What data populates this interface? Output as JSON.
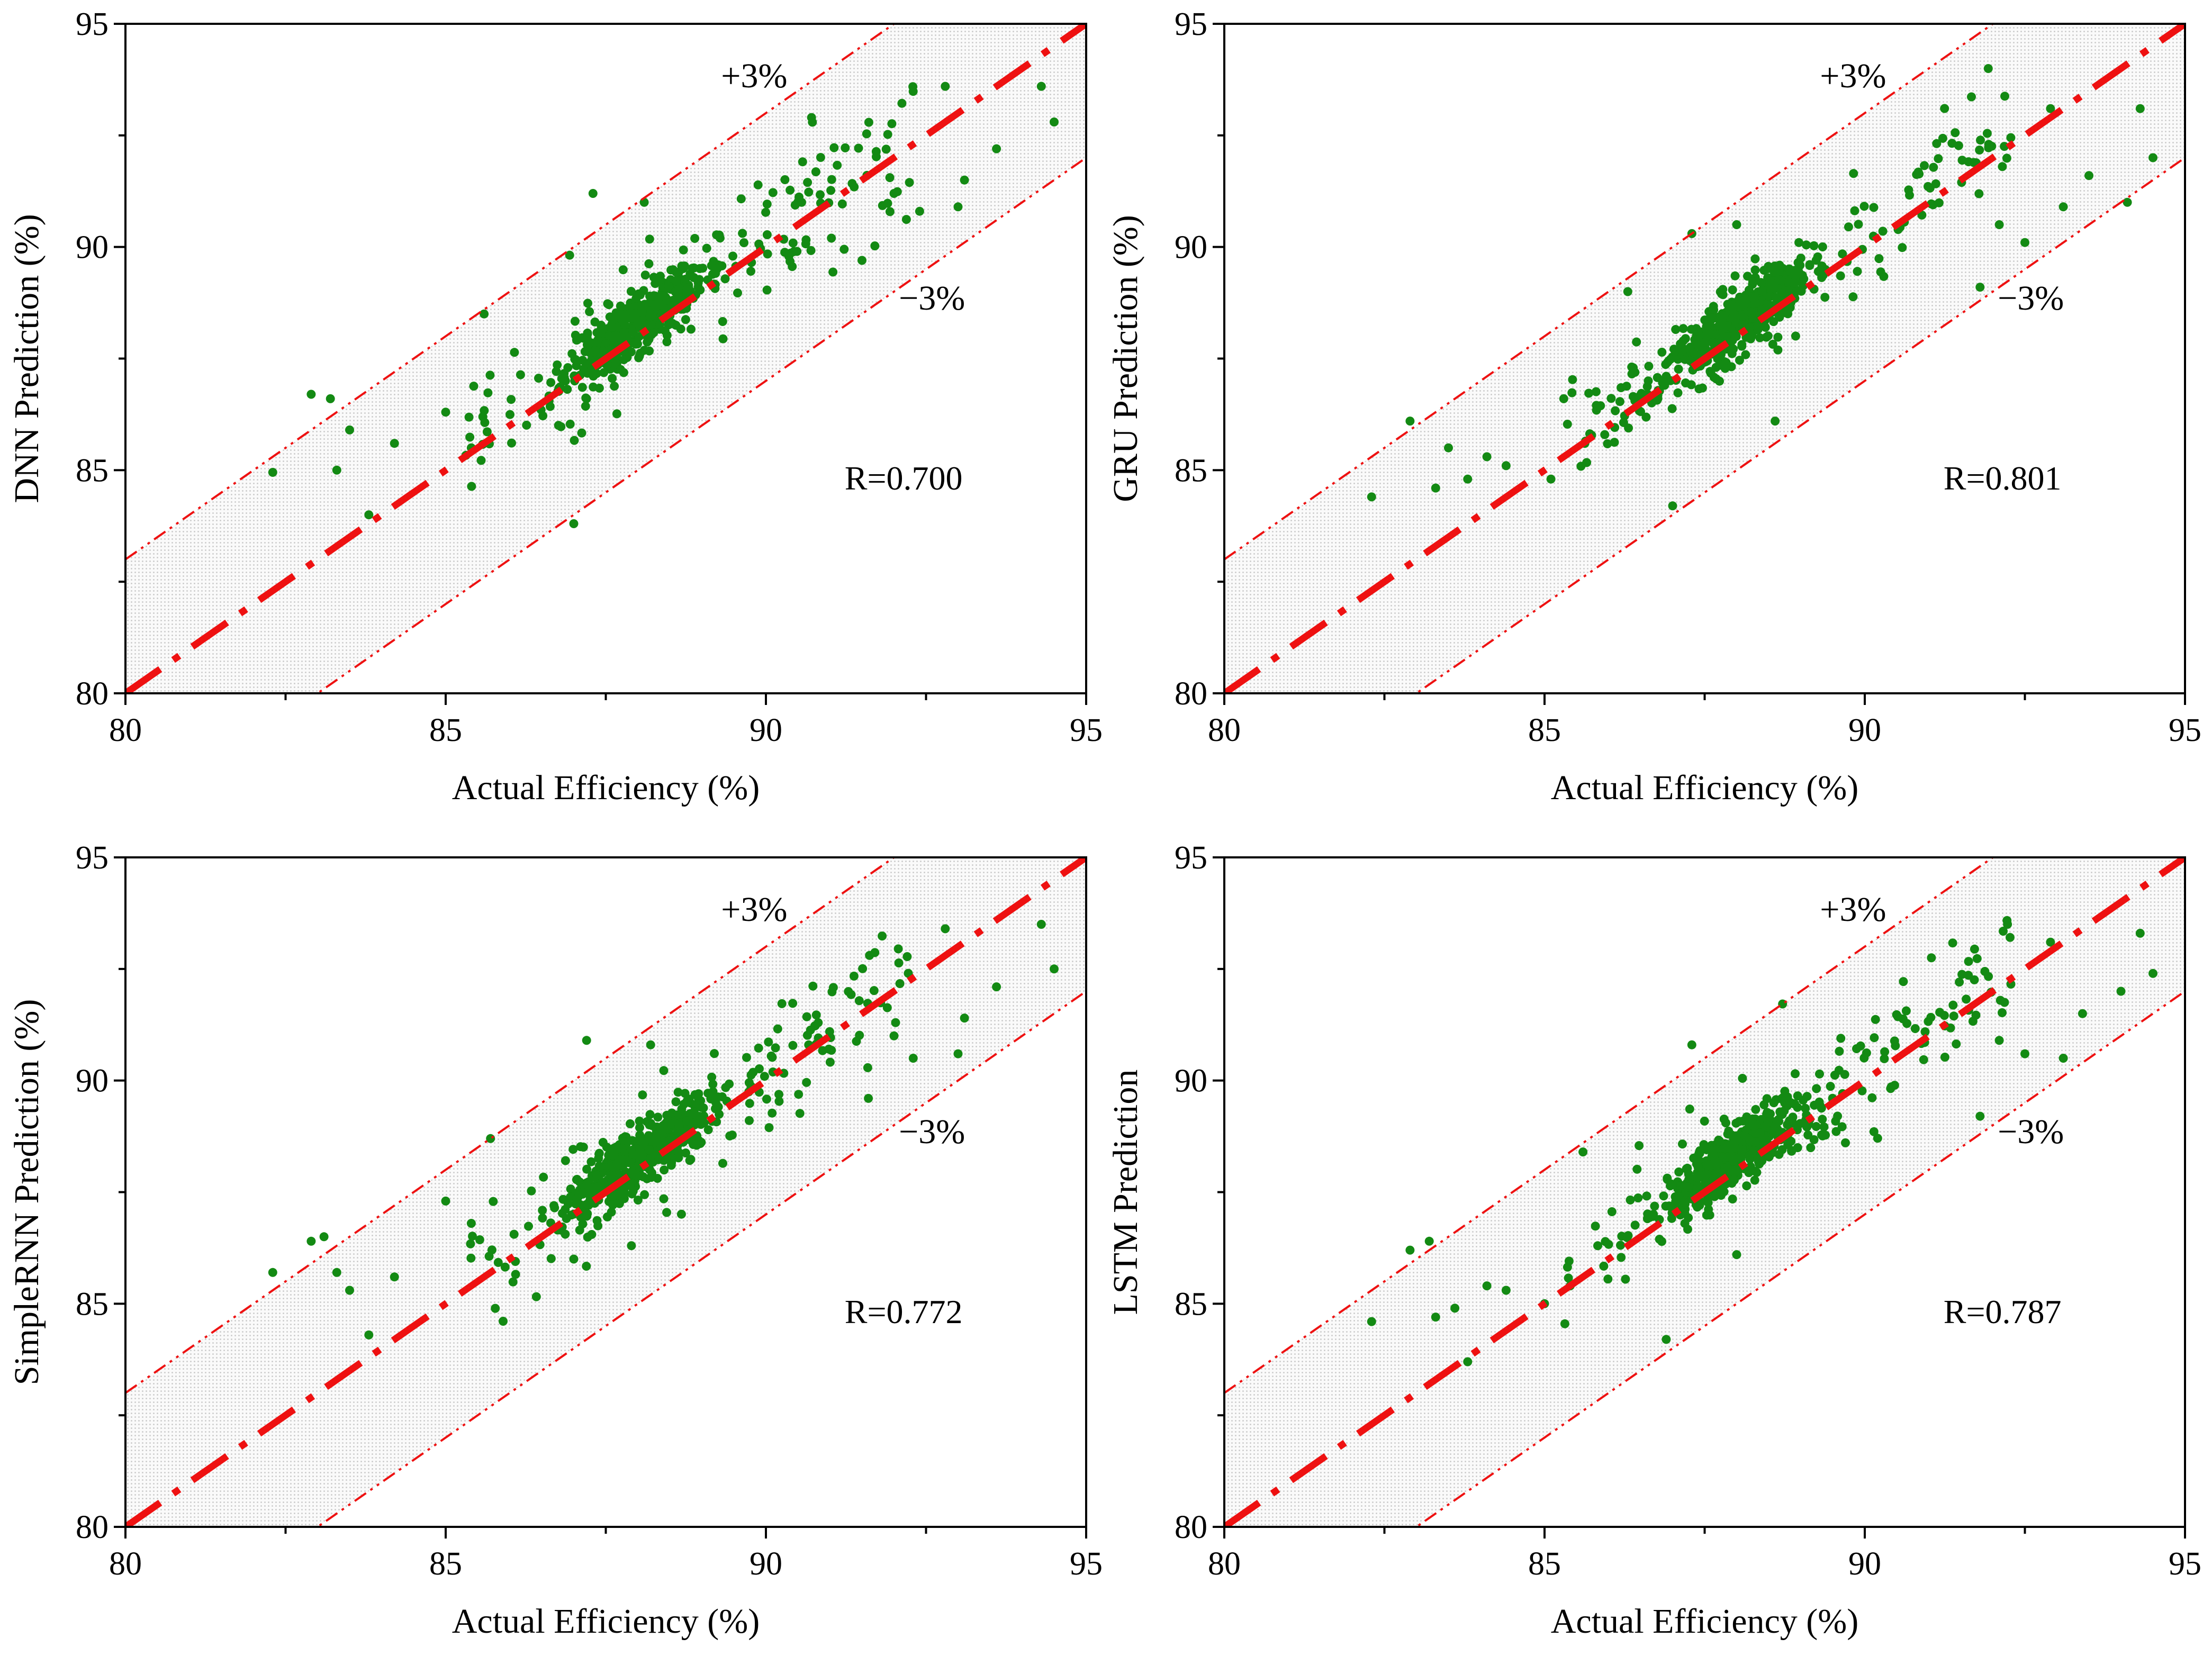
{
  "colors": {
    "points": "#138a13",
    "reference_line": "#ee1111",
    "band_fill": "#d9d9d9",
    "axes": "#000000"
  },
  "chart_data": [
    {
      "type": "scatter",
      "id": "dnn",
      "xlabel": "Actual Efficiency (%)",
      "ylabel": "DNN Prediction (%)",
      "xlim": [
        80,
        95
      ],
      "ylim": [
        80,
        95
      ],
      "xticks": [
        "80",
        "85",
        "90",
        "95"
      ],
      "yticks": [
        "80",
        "85",
        "90",
        "95"
      ],
      "band_plus_label": "+3%",
      "band_minus_label": "−3%",
      "r_label": "R=0.700",
      "points_seed": 11,
      "points_spread": 0.85,
      "outliers": [
        [
          82.3,
          84.95
        ],
        [
          82.9,
          86.7
        ],
        [
          83.2,
          86.6
        ],
        [
          83.3,
          85.0
        ],
        [
          83.5,
          85.9
        ],
        [
          83.8,
          84.0
        ],
        [
          84.2,
          85.6
        ],
        [
          85.0,
          86.3
        ],
        [
          85.4,
          85.5
        ],
        [
          85.6,
          88.5
        ],
        [
          87.0,
          83.8
        ],
        [
          87.2,
          86.6
        ],
        [
          87.3,
          91.2
        ],
        [
          88.1,
          91.0
        ],
        [
          91.5,
          89.7
        ],
        [
          92.0,
          91.2
        ],
        [
          92.4,
          90.8
        ],
        [
          92.8,
          93.6
        ],
        [
          93.0,
          90.9
        ],
        [
          93.1,
          91.5
        ],
        [
          93.6,
          92.2
        ],
        [
          94.3,
          93.6
        ],
        [
          94.5,
          92.8
        ]
      ]
    },
    {
      "type": "scatter",
      "id": "gru",
      "xlabel": "Actual Efficiency (%)",
      "ylabel": "GRU Prediction (%)",
      "xlim": [
        80,
        95
      ],
      "ylim": [
        80,
        95
      ],
      "xticks": [
        "80",
        "85",
        "90",
        "95"
      ],
      "yticks": [
        "80",
        "85",
        "90",
        "95"
      ],
      "band_plus_label": "+3%",
      "band_minus_label": "−3%",
      "r_label": "R=0.801",
      "points_seed": 23,
      "points_spread": 0.7,
      "outliers": [
        [
          82.3,
          84.4
        ],
        [
          82.9,
          86.1
        ],
        [
          83.3,
          84.6
        ],
        [
          83.5,
          85.5
        ],
        [
          83.8,
          84.8
        ],
        [
          84.1,
          85.3
        ],
        [
          84.4,
          85.1
        ],
        [
          85.1,
          84.8
        ],
        [
          85.3,
          86.6
        ],
        [
          86.3,
          89.0
        ],
        [
          87.0,
          84.2
        ],
        [
          87.3,
          90.3
        ],
        [
          88.0,
          90.5
        ],
        [
          88.6,
          86.1
        ],
        [
          91.8,
          89.1
        ],
        [
          92.1,
          90.5
        ],
        [
          92.5,
          90.1
        ],
        [
          92.9,
          93.1
        ],
        [
          93.1,
          90.9
        ],
        [
          93.5,
          91.6
        ],
        [
          94.1,
          91.0
        ],
        [
          94.3,
          93.1
        ],
        [
          94.5,
          92.0
        ]
      ]
    },
    {
      "type": "scatter",
      "id": "simplernn",
      "xlabel": "Actual Efficiency (%)",
      "ylabel": "SimpleRNN Prediction (%)",
      "xlim": [
        80,
        95
      ],
      "ylim": [
        80,
        95
      ],
      "xticks": [
        "80",
        "85",
        "90",
        "95"
      ],
      "yticks": [
        "80",
        "85",
        "90",
        "95"
      ],
      "band_plus_label": "+3%",
      "band_minus_label": "−3%",
      "r_label": "R=0.772",
      "points_seed": 37,
      "points_spread": 0.75,
      "outliers": [
        [
          82.3,
          85.7
        ],
        [
          82.9,
          86.4
        ],
        [
          83.1,
          86.5
        ],
        [
          83.3,
          85.7
        ],
        [
          83.5,
          85.3
        ],
        [
          83.8,
          84.3
        ],
        [
          84.2,
          85.6
        ],
        [
          85.0,
          87.3
        ],
        [
          85.4,
          86.8
        ],
        [
          85.7,
          88.7
        ],
        [
          87.0,
          86.0
        ],
        [
          87.2,
          90.9
        ],
        [
          87.9,
          86.3
        ],
        [
          88.2,
          90.8
        ],
        [
          91.6,
          89.6
        ],
        [
          92.0,
          91.0
        ],
        [
          92.3,
          90.5
        ],
        [
          92.8,
          93.4
        ],
        [
          93.0,
          90.6
        ],
        [
          93.1,
          91.4
        ],
        [
          93.6,
          92.1
        ],
        [
          94.3,
          93.5
        ],
        [
          94.5,
          92.5
        ]
      ]
    },
    {
      "type": "scatter",
      "id": "lstm",
      "xlabel": "Actual Efficiency (%)",
      "ylabel": "LSTM Prediction",
      "xlim": [
        80,
        95
      ],
      "ylim": [
        80,
        95
      ],
      "xticks": [
        "80",
        "85",
        "90",
        "95"
      ],
      "yticks": [
        "80",
        "85",
        "90",
        "95"
      ],
      "band_plus_label": "+3%",
      "band_minus_label": "−3%",
      "r_label": "R=0.787",
      "points_seed": 51,
      "points_spread": 0.72,
      "outliers": [
        [
          82.3,
          84.6
        ],
        [
          82.9,
          86.2
        ],
        [
          83.2,
          86.4
        ],
        [
          83.3,
          84.7
        ],
        [
          83.6,
          84.9
        ],
        [
          83.8,
          83.7
        ],
        [
          84.1,
          85.4
        ],
        [
          84.4,
          85.3
        ],
        [
          85.0,
          85.0
        ],
        [
          85.4,
          85.4
        ],
        [
          85.6,
          88.4
        ],
        [
          86.9,
          84.2
        ],
        [
          87.3,
          90.8
        ],
        [
          88.0,
          86.1
        ],
        [
          91.8,
          89.2
        ],
        [
          92.1,
          90.9
        ],
        [
          92.5,
          90.6
        ],
        [
          92.9,
          93.1
        ],
        [
          93.1,
          90.5
        ],
        [
          93.4,
          91.5
        ],
        [
          94.0,
          92.0
        ],
        [
          94.3,
          93.3
        ],
        [
          94.5,
          92.4
        ]
      ]
    }
  ]
}
